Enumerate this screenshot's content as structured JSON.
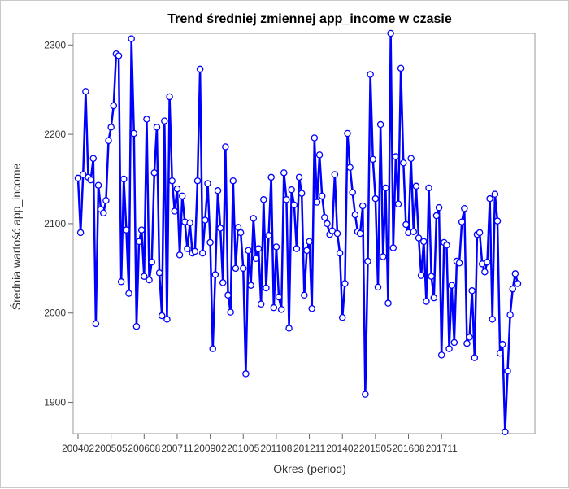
{
  "chart_data": {
    "type": "line",
    "title": "Trend średniej zmiennej app_income w czasie",
    "xlabel": "Okres (period)",
    "ylabel": "Średnia wartość app_income",
    "ylim": [
      1865,
      2313
    ],
    "yticks": [
      1900,
      2000,
      2100,
      2200,
      2300
    ],
    "xticks": [
      {
        "label": "200402",
        "index": 0
      },
      {
        "label": "200505",
        "index": 13
      },
      {
        "label": "200608",
        "index": 26
      },
      {
        "label": "200711",
        "index": 39
      },
      {
        "label": "200902",
        "index": 52
      },
      {
        "label": "201005",
        "index": 65
      },
      {
        "label": "201108",
        "index": 78
      },
      {
        "label": "201211",
        "index": 91
      },
      {
        "label": "201402",
        "index": 104
      },
      {
        "label": "201505",
        "index": 117
      },
      {
        "label": "201608",
        "index": 130
      },
      {
        "label": "201711",
        "index": 143
      }
    ],
    "grid": false,
    "legend": "none",
    "series": [
      {
        "color": "#0000ff",
        "values": [
          2151,
          2090,
          2155,
          2248,
          2152,
          2149,
          2173,
          1988,
          2143,
          2116,
          2112,
          2126,
          2193,
          2208,
          2232,
          2290,
          2288,
          2035,
          2150,
          2093,
          2022,
          2307,
          2201,
          1985,
          2080,
          2093,
          2041,
          2217,
          2037,
          2057,
          2157,
          2208,
          2045,
          1997,
          2215,
          1993,
          2242,
          2148,
          2114,
          2139,
          2065,
          2131,
          2102,
          2072,
          2101,
          2067,
          2069,
          2148,
          2273,
          2067,
          2104,
          2145,
          2079,
          1960,
          2043,
          2137,
          2095,
          2034,
          2186,
          2020,
          2001,
          2148,
          2050,
          2096,
          2090,
          2050,
          1932,
          2070,
          2031,
          2106,
          2061,
          2072,
          2010,
          2127,
          2028,
          2087,
          2152,
          2006,
          2074,
          2018,
          2004,
          2157,
          2127,
          1983,
          2138,
          2121,
          2072,
          2152,
          2134,
          2020,
          2070,
          2080,
          2005,
          2196,
          2124,
          2177,
          2131,
          2107,
          2100,
          2088,
          2092,
          2155,
          2089,
          2067,
          1995,
          2033,
          2201,
          2163,
          2135,
          2110,
          2091,
          2089,
          2120,
          1909,
          2058,
          2267,
          2172,
          2128,
          2029,
          2211,
          2063,
          2140,
          2011,
          2313,
          2073,
          2175,
          2122,
          2274,
          2168,
          2099,
          2090,
          2173,
          2091,
          2142,
          2084,
          2042,
          2080,
          2013,
          2140,
          2041,
          2017,
          2109,
          2118,
          1953,
          2079,
          2076,
          1960,
          2031,
          1967,
          2058,
          2056,
          2102,
          2117,
          1966,
          1973,
          2025,
          1950,
          2088,
          2090,
          2055,
          2046,
          2057,
          2128,
          1993,
          2133,
          2103,
          1955,
          1965,
          1867,
          1935,
          1998,
          2027,
          2044,
          2033
        ]
      }
    ]
  }
}
